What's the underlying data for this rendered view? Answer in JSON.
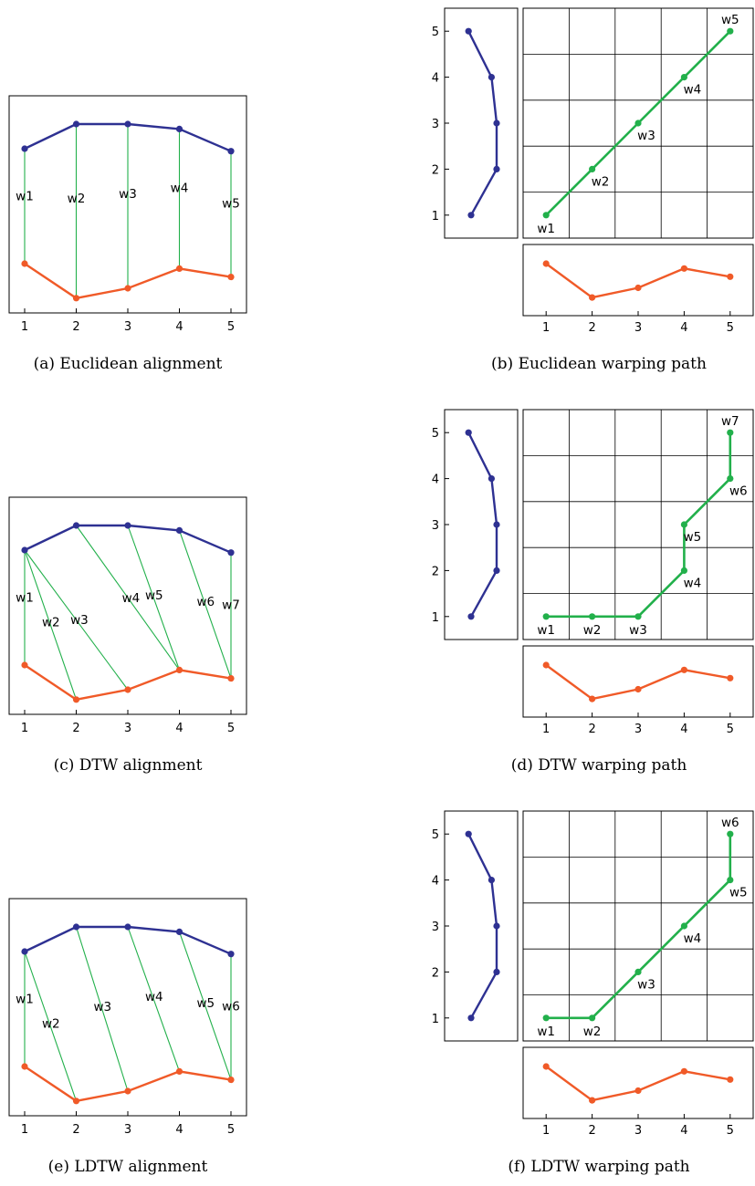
{
  "colors": {
    "series_top": "#2e3192",
    "series_bottom": "#f05a28",
    "warp": "#22b04b",
    "frame": "#000000",
    "grid": "#000000"
  },
  "series": {
    "top": [
      4.0,
      4.5,
      4.5,
      4.4,
      3.95
    ],
    "bottom": [
      1.75,
      1.05,
      1.25,
      1.65,
      1.48
    ]
  },
  "panels": [
    {
      "id": "a",
      "type": "alignment",
      "caption": "(a) Euclidean alignment",
      "x_ticks": [
        "1",
        "2",
        "3",
        "4",
        "5"
      ],
      "connections": [
        {
          "top": 1,
          "bottom": 1,
          "label": "w1"
        },
        {
          "top": 2,
          "bottom": 2,
          "label": "w2"
        },
        {
          "top": 3,
          "bottom": 3,
          "label": "w3"
        },
        {
          "top": 4,
          "bottom": 4,
          "label": "w4"
        },
        {
          "top": 5,
          "bottom": 5,
          "label": "w5"
        }
      ]
    },
    {
      "id": "b",
      "type": "warping",
      "caption": "(b) Euclidean warping path",
      "x_ticks": [
        "1",
        "2",
        "3",
        "4",
        "5"
      ],
      "y_ticks": [
        "1",
        "2",
        "3",
        "4",
        "5"
      ],
      "path": [
        {
          "i": 1,
          "j": 1,
          "label": "w1"
        },
        {
          "i": 2,
          "j": 2,
          "label": "w2"
        },
        {
          "i": 3,
          "j": 3,
          "label": "w3"
        },
        {
          "i": 4,
          "j": 4,
          "label": "w4"
        },
        {
          "i": 5,
          "j": 5,
          "label": "w5"
        }
      ]
    },
    {
      "id": "c",
      "type": "alignment",
      "caption": "(c) DTW alignment",
      "x_ticks": [
        "1",
        "2",
        "3",
        "4",
        "5"
      ],
      "connections": [
        {
          "top": 1,
          "bottom": 1,
          "label": "w1"
        },
        {
          "top": 1,
          "bottom": 2,
          "label": "w2"
        },
        {
          "top": 1,
          "bottom": 3,
          "label": "w3"
        },
        {
          "top": 2,
          "bottom": 4,
          "label": "w4"
        },
        {
          "top": 3,
          "bottom": 4,
          "label": "w5"
        },
        {
          "top": 4,
          "bottom": 5,
          "label": "w6"
        },
        {
          "top": 5,
          "bottom": 5,
          "label": "w7"
        }
      ]
    },
    {
      "id": "d",
      "type": "warping",
      "caption": "(d) DTW warping path",
      "x_ticks": [
        "1",
        "2",
        "3",
        "4",
        "5"
      ],
      "y_ticks": [
        "1",
        "2",
        "3",
        "4",
        "5"
      ],
      "path": [
        {
          "i": 1,
          "j": 1,
          "label": "w1"
        },
        {
          "i": 2,
          "j": 1,
          "label": "w2"
        },
        {
          "i": 3,
          "j": 1,
          "label": "w3"
        },
        {
          "i": 4,
          "j": 2,
          "label": "w4"
        },
        {
          "i": 4,
          "j": 3,
          "label": "w5"
        },
        {
          "i": 5,
          "j": 4,
          "label": "w6"
        },
        {
          "i": 5,
          "j": 5,
          "label": "w7"
        }
      ]
    },
    {
      "id": "e",
      "type": "alignment",
      "caption": "(e) LDTW alignment",
      "x_ticks": [
        "1",
        "2",
        "3",
        "4",
        "5"
      ],
      "connections": [
        {
          "top": 1,
          "bottom": 1,
          "label": "w1"
        },
        {
          "top": 1,
          "bottom": 2,
          "label": "w2"
        },
        {
          "top": 2,
          "bottom": 3,
          "label": "w3"
        },
        {
          "top": 3,
          "bottom": 4,
          "label": "w4"
        },
        {
          "top": 4,
          "bottom": 5,
          "label": "w5"
        },
        {
          "top": 5,
          "bottom": 5,
          "label": "w6"
        }
      ]
    },
    {
      "id": "f",
      "type": "warping",
      "caption": "(f) LDTW warping path",
      "x_ticks": [
        "1",
        "2",
        "3",
        "4",
        "5"
      ],
      "y_ticks": [
        "1",
        "2",
        "3",
        "4",
        "5"
      ],
      "path": [
        {
          "i": 1,
          "j": 1,
          "label": "w1"
        },
        {
          "i": 2,
          "j": 1,
          "label": "w2"
        },
        {
          "i": 3,
          "j": 2,
          "label": "w3"
        },
        {
          "i": 4,
          "j": 3,
          "label": "w4"
        },
        {
          "i": 5,
          "j": 4,
          "label": "w5"
        },
        {
          "i": 5,
          "j": 5,
          "label": "w6"
        }
      ]
    }
  ]
}
